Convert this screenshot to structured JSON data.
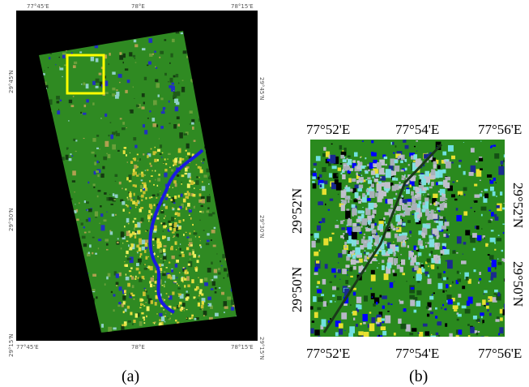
{
  "panel_a": {
    "caption": "(a)",
    "top_labels": [
      "77°45'E",
      "78°E",
      "78°15'E"
    ],
    "bottom_labels": [
      "77°45'E",
      "78°E",
      "78°15'E"
    ],
    "left_labels": [
      "29°45'N",
      "29°30'N",
      "29°15'N"
    ],
    "right_labels": [
      "29°45'N",
      "29°30'N",
      "29°15'N"
    ]
  },
  "panel_b": {
    "caption": "(b)",
    "top_labels": [
      "77°52'E",
      "77°54'E",
      "77°56'E"
    ],
    "bottom_labels": [
      "77°52'E",
      "77°54'E",
      "77°56'E"
    ],
    "left_labels": [
      "29°52'N",
      "29°50'N"
    ],
    "right_labels": [
      "29°52'N",
      "29°50'N"
    ]
  }
}
